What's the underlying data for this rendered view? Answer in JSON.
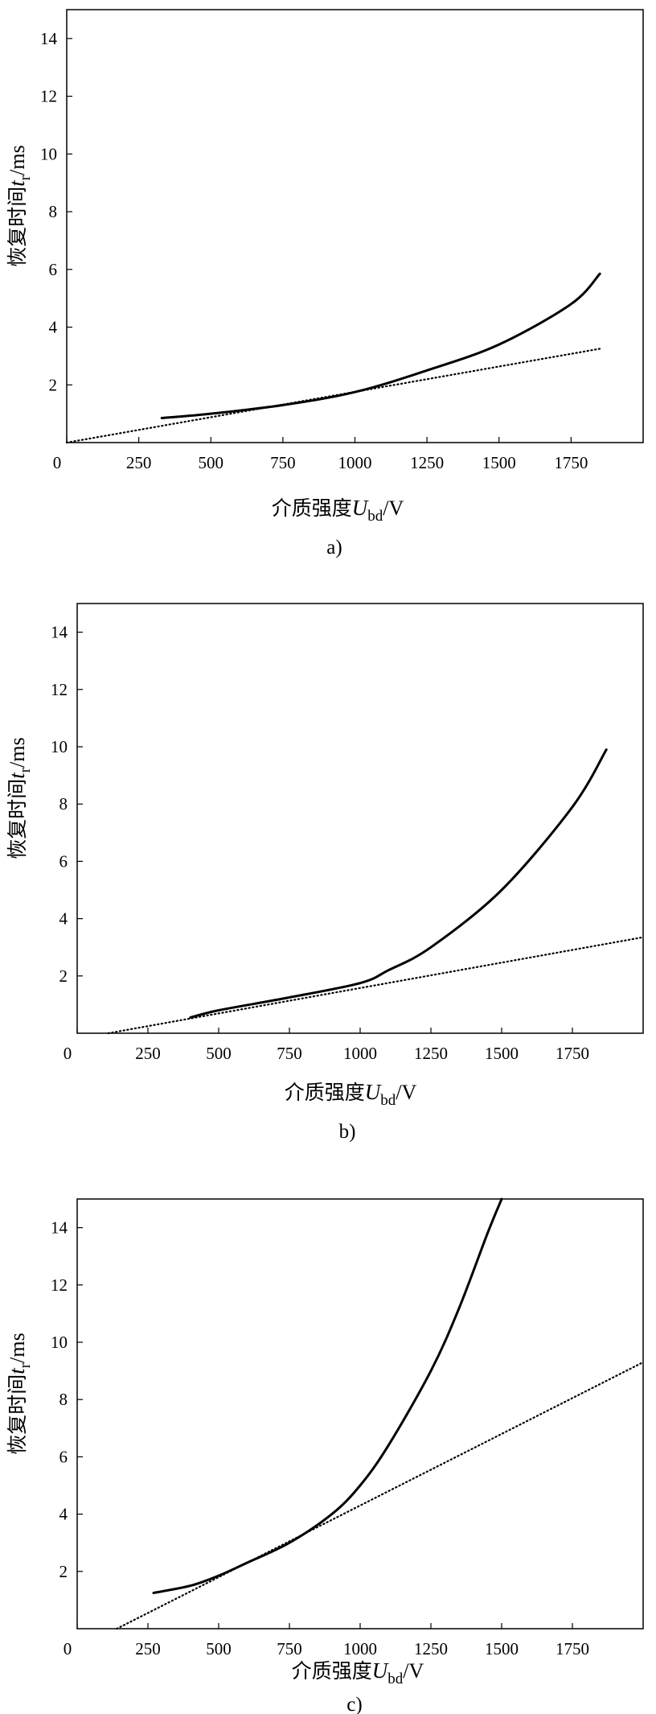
{
  "chart_data": [
    {
      "type": "line",
      "caption": "a)",
      "xlabel": {
        "prefix": "介质强度",
        "var": "U",
        "sub": "bd",
        "unit": "/V"
      },
      "ylabel": {
        "prefix": "恢复时间",
        "var": "t",
        "sub": "r",
        "unit": "/ms"
      },
      "xlim": [
        0,
        2000
      ],
      "ylim": [
        0,
        15
      ],
      "xticks": [
        0,
        250,
        500,
        750,
        1000,
        1250,
        1500,
        1750
      ],
      "yticks": [
        2,
        4,
        6,
        8,
        10,
        12,
        14
      ],
      "series": [
        {
          "style": "solid",
          "x": [
            330,
            500,
            750,
            1000,
            1250,
            1500,
            1750,
            1850
          ],
          "y": [
            0.85,
            1.0,
            1.3,
            1.75,
            2.5,
            3.4,
            4.8,
            5.85
          ]
        },
        {
          "style": "dotted",
          "x": [
            0,
            1850
          ],
          "y": [
            0.0,
            3.25
          ]
        }
      ]
    },
    {
      "type": "line",
      "caption": "b)",
      "xlabel": {
        "prefix": "介质强度",
        "var": "U",
        "sub": "bd",
        "unit": "/V"
      },
      "ylabel": {
        "prefix": "恢复时间",
        "var": "t",
        "sub": "r",
        "unit": "/ms"
      },
      "xlim": [
        0,
        2000
      ],
      "ylim": [
        0,
        15
      ],
      "xticks": [
        0,
        250,
        500,
        750,
        1000,
        1250,
        1500,
        1750
      ],
      "yticks": [
        2,
        4,
        6,
        8,
        10,
        12,
        14
      ],
      "series": [
        {
          "style": "solid",
          "x": [
            400,
            500,
            750,
            1000,
            1100,
            1250,
            1500,
            1750,
            1870
          ],
          "y": [
            0.55,
            0.8,
            1.25,
            1.75,
            2.2,
            3.0,
            5.0,
            7.9,
            9.9
          ]
        },
        {
          "style": "dotted",
          "x": [
            110,
            2000
          ],
          "y": [
            0.0,
            3.35
          ]
        }
      ]
    },
    {
      "type": "line",
      "caption": "c)",
      "xlabel": {
        "prefix": "介质强度",
        "var": "U",
        "sub": "bd",
        "unit": "/V"
      },
      "ylabel": {
        "prefix": "恢复时间",
        "var": "t",
        "sub": "r",
        "unit": "/ms"
      },
      "xlim": [
        0,
        2000
      ],
      "ylim": [
        0,
        15
      ],
      "xticks": [
        0,
        250,
        500,
        750,
        1000,
        1250,
        1500,
        1750
      ],
      "yticks": [
        2,
        4,
        6,
        8,
        10,
        12,
        14
      ],
      "series": [
        {
          "style": "solid",
          "x": [
            270,
            400,
            500,
            600,
            750,
            900,
            1000,
            1100,
            1250,
            1350,
            1450,
            1500
          ],
          "y": [
            1.25,
            1.5,
            1.85,
            2.3,
            3.0,
            4.0,
            5.0,
            6.4,
            9.0,
            11.2,
            13.8,
            15.0
          ]
        },
        {
          "style": "dotted",
          "x": [
            140,
            2000
          ],
          "y": [
            0.0,
            9.3
          ]
        }
      ]
    }
  ]
}
